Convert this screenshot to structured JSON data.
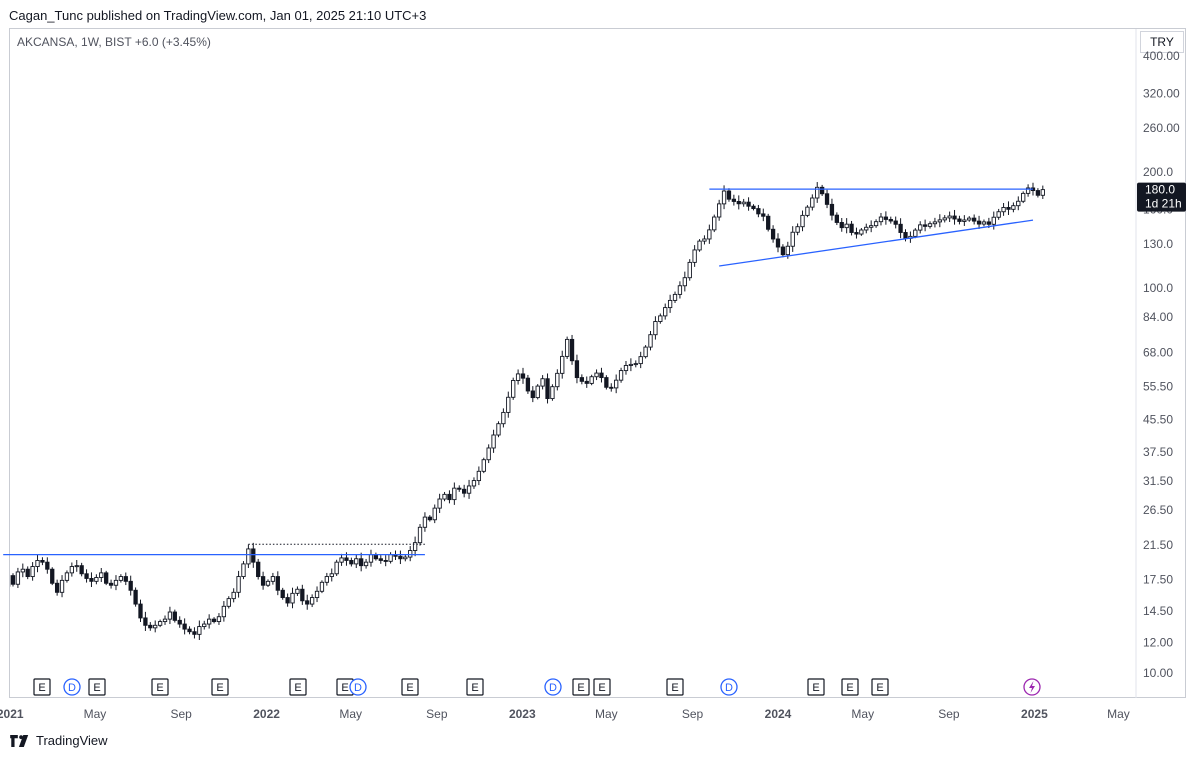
{
  "header": {
    "published": "Cagan_Tunc published on TradingView.com, Jan 01, 2025 21:10 UTC+3",
    "symbol_line": "AKCANSA, 1W, BIST  +6.0 (+3.45%)",
    "currency": "TRY"
  },
  "footer": {
    "brand": "TradingView"
  },
  "chart_data": {
    "type": "candlestick",
    "symbol": "AKCANSA",
    "interval": "1W",
    "exchange": "BIST",
    "change": "+6.0 (+3.45%)",
    "scale": "log",
    "currency": "TRY",
    "price_tag": {
      "value": "180.0",
      "countdown": "1d 21h"
    },
    "y_ticks": [
      "400.00",
      "320.00",
      "260.00",
      "200.0",
      "160.0",
      "130.0",
      "100.0",
      "84.00",
      "68.00",
      "55.50",
      "45.50",
      "37.50",
      "31.50",
      "26.50",
      "21.50",
      "17.50",
      "14.50",
      "12.00",
      "10.00"
    ],
    "x_ticks": [
      "2021",
      "May",
      "Sep",
      "2022",
      "May",
      "Sep",
      "2023",
      "May",
      "Sep",
      "2024",
      "May",
      "Sep",
      "2025",
      "May"
    ],
    "closes": [
      15.2,
      16.8,
      17.9,
      17.0,
      18.3,
      18.6,
      17.8,
      18.9,
      19.6,
      19.4,
      18.6,
      17.1,
      16.2,
      17.4,
      18.2,
      18.9,
      19.0,
      18.1,
      17.6,
      17.3,
      17.7,
      18.2,
      17.1,
      16.9,
      17.4,
      17.8,
      17.3,
      16.4,
      15.1,
      13.9,
      13.3,
      13.1,
      13.3,
      13.6,
      13.8,
      14.4,
      13.7,
      13.4,
      13.0,
      12.8,
      12.6,
      13.2,
      13.4,
      13.8,
      13.6,
      14.0,
      14.9,
      15.6,
      16.2,
      17.8,
      19.2,
      21.0,
      19.4,
      17.8,
      16.9,
      17.3,
      17.8,
      16.4,
      15.7,
      15.2,
      16.1,
      16.5,
      15.4,
      15.1,
      15.7,
      16.3,
      17.2,
      17.8,
      18.1,
      19.4,
      19.9,
      19.6,
      19.2,
      19.8,
      19.0,
      19.4,
      20.3,
      19.8,
      19.6,
      19.5,
      20.3,
      20.1,
      19.8,
      20.0,
      20.8,
      21.8,
      23.9,
      25.4,
      25.0,
      26.8,
      28.3,
      29.1,
      28.2,
      30.2,
      30.0,
      29.3,
      30.6,
      31.6,
      33.4,
      35.8,
      38.4,
      41.5,
      44.4,
      47.5,
      52.0,
      57.5,
      59.8,
      58.3,
      54.0,
      51.9,
      55.6,
      58.1,
      51.6,
      55.4,
      60.0,
      66.4,
      73.5,
      64.7,
      58.5,
      57.2,
      56.5,
      58.8,
      60.1,
      58.5,
      55.2,
      55.0,
      57.6,
      61.0,
      62.9,
      63.3,
      63.6,
      66.3,
      70.2,
      75.6,
      81.8,
      84.6,
      88.9,
      92.8,
      96.2,
      101.3,
      106.3,
      116.5,
      125.5,
      132.3,
      134.0,
      141.5,
      152.8,
      165.3,
      178.5,
      170.0,
      167.7,
      165.4,
      167.0,
      163.0,
      160.7,
      155.7,
      153.5,
      142.0,
      134.0,
      127.7,
      122.0,
      128.3,
      139.5,
      144.2,
      154.3,
      162.1,
      171.2,
      182.5,
      175.6,
      164.8,
      154.5,
      147.9,
      143.4,
      146.4,
      139.3,
      138.0,
      141.4,
      143.7,
      145.1,
      148.6,
      152.8,
      150.6,
      149.2,
      146.3,
      139.3,
      134.5,
      136.1,
      141.3,
      145.8,
      144.5,
      146.8,
      148.4,
      150.2,
      152.0,
      153.7,
      151.0,
      148.8,
      150.1,
      151.8,
      149.1,
      146.5,
      148.4,
      146.3,
      152.6,
      157.7,
      161.8,
      160.0,
      163.5,
      167.9,
      176.0,
      181.8,
      179.0,
      174.0,
      180.0
    ],
    "x_start": "2020-12-14",
    "trendlines": [
      {
        "x": [
          "2020-12-21",
          "2022-08-15"
        ],
        "y": [
          20.3,
          20.3
        ]
      },
      {
        "x": [
          "2023-09-25",
          "2024-12-30"
        ],
        "y": [
          180.5,
          180.5
        ]
      },
      {
        "x": [
          "2023-10-09",
          "2024-12-30"
        ],
        "y": [
          114,
          150
        ]
      }
    ],
    "dotted_lines": [
      {
        "x": [
          "2021-12-06",
          "2022-08-15"
        ],
        "y": [
          21.6,
          21.6
        ]
      }
    ],
    "event_markers": [
      "E",
      "D",
      "E",
      "E",
      "E",
      "E",
      "E",
      "D",
      "E",
      "E",
      "D",
      "E",
      "E",
      "E",
      "D",
      "E",
      "E",
      "E"
    ],
    "grid": false,
    "legend": "none"
  }
}
